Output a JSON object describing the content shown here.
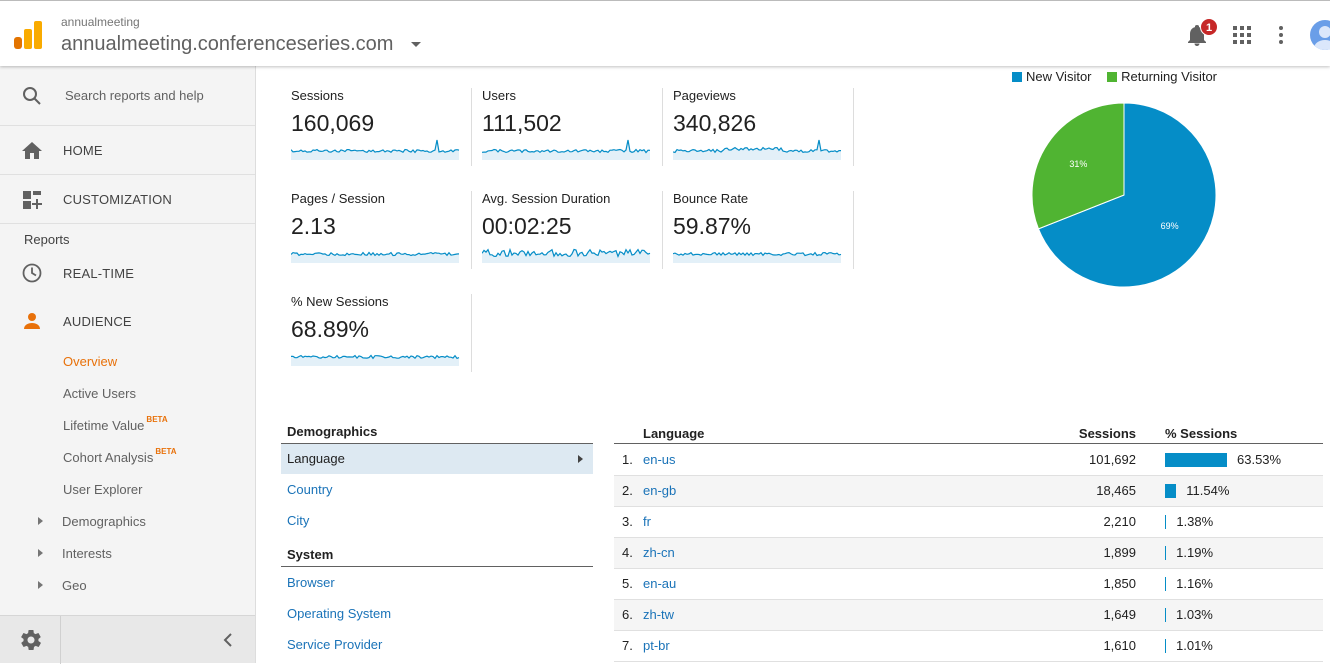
{
  "header": {
    "account_label": "annualmeeting",
    "property_label": "annualmeeting.conferenceseries.com",
    "notification_count": "1",
    "icons": [
      "analytics-logo-icon",
      "bell-icon",
      "apps-grid-icon",
      "more-vert-icon",
      "avatar-icon"
    ]
  },
  "sidebar": {
    "search_placeholder": "Search reports and help",
    "home_label": "HOME",
    "customization_label": "CUSTOMIZATION",
    "reports_label": "Reports",
    "realtime_label": "REAL-TIME",
    "audience_label": "AUDIENCE",
    "audience_items": [
      {
        "label": "Overview",
        "active": true
      },
      {
        "label": "Active Users"
      },
      {
        "label": "Lifetime Value",
        "badge": "BETA"
      },
      {
        "label": "Cohort Analysis",
        "badge": "BETA"
      },
      {
        "label": "User Explorer"
      }
    ],
    "expandable_items": [
      "Demographics",
      "Interests",
      "Geo"
    ],
    "accent_color": "#e8710a"
  },
  "metrics": [
    {
      "label": "Sessions",
      "value": "160,069"
    },
    {
      "label": "Users",
      "value": "111,502"
    },
    {
      "label": "Pageviews",
      "value": "340,826"
    },
    {
      "label": "Pages / Session",
      "value": "2.13"
    },
    {
      "label": "Avg. Session Duration",
      "value": "00:02:25"
    },
    {
      "label": "Bounce Rate",
      "value": "59.87%"
    },
    {
      "label": "% New Sessions",
      "value": "68.89%"
    }
  ],
  "chart_data": {
    "type": "pie",
    "legend_position": "top",
    "series": [
      {
        "name": "New Visitor",
        "value": 69,
        "label": "69%",
        "color": "#058dc7"
      },
      {
        "name": "Returning Visitor",
        "value": 31,
        "label": "31%",
        "color": "#50b432"
      }
    ]
  },
  "demographics": {
    "section_title": "Demographics",
    "items": [
      {
        "label": "Language",
        "selected": true
      },
      {
        "label": "Country"
      },
      {
        "label": "City"
      }
    ],
    "system_title": "System",
    "system_items": [
      {
        "label": "Browser"
      },
      {
        "label": "Operating System"
      },
      {
        "label": "Service Provider"
      }
    ]
  },
  "language_table": {
    "headers": {
      "language": "Language",
      "sessions": "Sessions",
      "pct_sessions": "% Sessions"
    },
    "bar_color": "#058dc7",
    "rows": [
      {
        "index": "1.",
        "language": "en-us",
        "sessions": "101,692",
        "pct": "63.53%",
        "pct_value": 63.53
      },
      {
        "index": "2.",
        "language": "en-gb",
        "sessions": "18,465",
        "pct": "11.54%",
        "pct_value": 11.54
      },
      {
        "index": "3.",
        "language": "fr",
        "sessions": "2,210",
        "pct": "1.38%",
        "pct_value": 1.38
      },
      {
        "index": "4.",
        "language": "zh-cn",
        "sessions": "1,899",
        "pct": "1.19%",
        "pct_value": 1.19
      },
      {
        "index": "5.",
        "language": "en-au",
        "sessions": "1,850",
        "pct": "1.16%",
        "pct_value": 1.16
      },
      {
        "index": "6.",
        "language": "zh-tw",
        "sessions": "1,649",
        "pct": "1.03%",
        "pct_value": 1.03
      },
      {
        "index": "7.",
        "language": "pt-br",
        "sessions": "1,610",
        "pct": "1.01%",
        "pct_value": 1.01
      }
    ]
  }
}
